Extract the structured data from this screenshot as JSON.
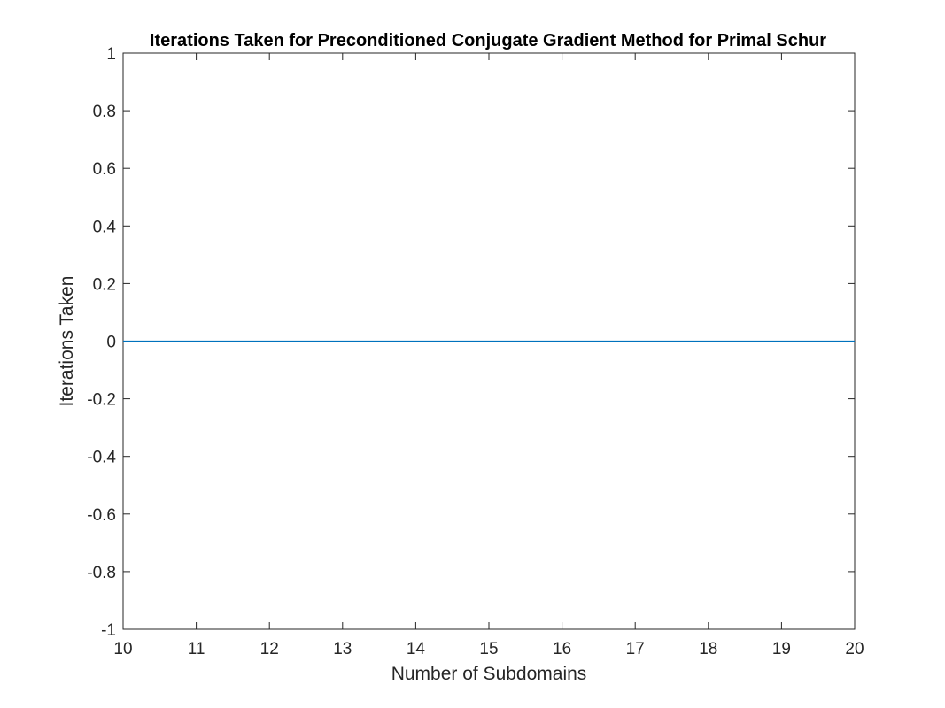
{
  "chart_data": {
    "type": "line",
    "title": "Iterations Taken for Preconditioned Conjugate Gradient Method for Primal Schur",
    "xlabel": "Number of Subdomains",
    "ylabel": "Iterations Taken",
    "xlim": [
      10,
      20
    ],
    "ylim": [
      -1,
      1
    ],
    "xticks": [
      10,
      11,
      12,
      13,
      14,
      15,
      16,
      17,
      18,
      19,
      20
    ],
    "xtick_labels": [
      "10",
      "11",
      "12",
      "13",
      "14",
      "15",
      "16",
      "17",
      "18",
      "19",
      "20"
    ],
    "yticks": [
      1,
      0.8,
      0.6,
      0.4,
      0.2,
      0,
      -0.2,
      -0.4,
      -0.6,
      -0.8,
      -1
    ],
    "ytick_labels": [
      "1",
      "0.8",
      "0.6",
      "0.4",
      "0.2",
      "0",
      "-0.2",
      "-0.4",
      "-0.6",
      "-0.8",
      "-1"
    ],
    "grid": false,
    "series": [
      {
        "x": [
          10,
          11,
          12,
          13,
          14,
          15,
          16,
          17,
          18,
          19,
          20
        ],
        "y": [
          0,
          0,
          0,
          0,
          0,
          0,
          0,
          0,
          0,
          0,
          0
        ],
        "color": "#0072BD"
      }
    ],
    "axis_color": "#262626",
    "background": "#ffffff"
  }
}
